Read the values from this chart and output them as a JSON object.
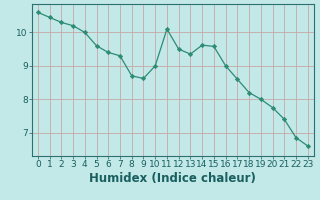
{
  "x": [
    0,
    1,
    2,
    3,
    4,
    5,
    6,
    7,
    8,
    9,
    10,
    11,
    12,
    13,
    14,
    15,
    16,
    17,
    18,
    19,
    20,
    21,
    22,
    23
  ],
  "y": [
    10.6,
    10.45,
    10.3,
    10.2,
    10.0,
    9.6,
    9.4,
    9.3,
    8.7,
    8.62,
    9.0,
    10.1,
    9.5,
    9.35,
    9.62,
    9.58,
    9.0,
    8.6,
    8.2,
    8.0,
    7.75,
    7.4,
    6.85,
    6.6
  ],
  "line_color": "#2e8b74",
  "marker_color": "#2e8b74",
  "bg_color": "#c2e8e8",
  "grid_color": "#c8a8a8",
  "xlabel": "Humidex (Indice chaleur)",
  "xlim": [
    -0.5,
    23.5
  ],
  "ylim": [
    6.3,
    10.85
  ],
  "yticks": [
    7,
    8,
    9,
    10
  ],
  "xticks": [
    0,
    1,
    2,
    3,
    4,
    5,
    6,
    7,
    8,
    9,
    10,
    11,
    12,
    13,
    14,
    15,
    16,
    17,
    18,
    19,
    20,
    21,
    22,
    23
  ],
  "tick_font_size": 6.5,
  "xlabel_font_size": 8.5,
  "line_width": 0.9,
  "marker_size": 2.2
}
